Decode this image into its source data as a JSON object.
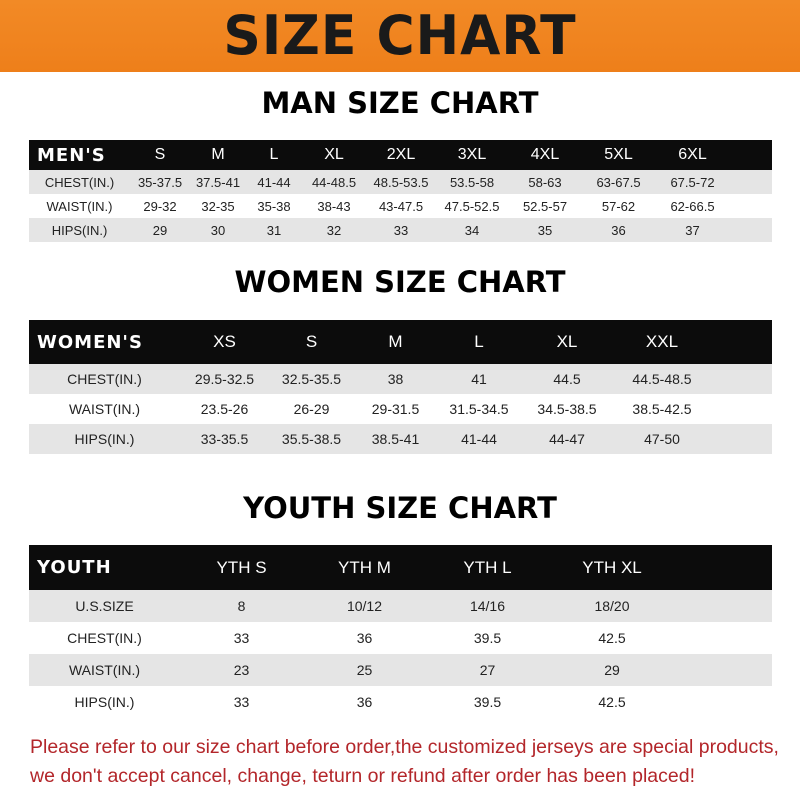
{
  "banner": {
    "title": "SIZE CHART",
    "color": "#ef841f"
  },
  "men": {
    "title": "MAN SIZE CHART",
    "header": [
      "MEN'S",
      "S",
      "M",
      "L",
      "XL",
      "2XL",
      "3XL",
      "4XL",
      "5XL",
      "6XL"
    ],
    "rows": [
      [
        "CHEST(IN.)",
        "35-37.5",
        "37.5-41",
        "41-44",
        "44-48.5",
        "48.5-53.5",
        "53.5-58",
        "58-63",
        "63-67.5",
        "67.5-72"
      ],
      [
        "WAIST(IN.)",
        "29-32",
        "32-35",
        "35-38",
        "38-43",
        "43-47.5",
        "47.5-52.5",
        "52.5-57",
        "57-62",
        "62-66.5"
      ],
      [
        "HIPS(IN.)",
        "29",
        "30",
        "31",
        "32",
        "33",
        "34",
        "35",
        "36",
        "37"
      ]
    ]
  },
  "women": {
    "title": "WOMEN SIZE CHART",
    "header": [
      "WOMEN'S",
      "XS",
      "S",
      "M",
      "L",
      "XL",
      "XXL"
    ],
    "rows": [
      [
        "CHEST(IN.)",
        "29.5-32.5",
        "32.5-35.5",
        "38",
        "41",
        "44.5",
        "44.5-48.5"
      ],
      [
        "WAIST(IN.)",
        "23.5-26",
        "26-29",
        "29-31.5",
        "31.5-34.5",
        "34.5-38.5",
        "38.5-42.5"
      ],
      [
        "HIPS(IN.)",
        "33-35.5",
        "35.5-38.5",
        "38.5-41",
        "41-44",
        "44-47",
        "47-50"
      ]
    ]
  },
  "youth": {
    "title": "YOUTH SIZE CHART",
    "header": [
      "YOUTH",
      "YTH S",
      "YTH M",
      "YTH L",
      "YTH XL"
    ],
    "rows": [
      [
        "U.S.SIZE",
        "8",
        "10/12",
        "14/16",
        "18/20"
      ],
      [
        "CHEST(IN.)",
        "33",
        "36",
        "39.5",
        "42.5"
      ],
      [
        "WAIST(IN.)",
        "23",
        "25",
        "27",
        "29"
      ],
      [
        "HIPS(IN.)",
        "33",
        "36",
        "39.5",
        "42.5"
      ]
    ]
  },
  "note": {
    "line1": "Please refer to our size chart before order,the customized jerseys are special products,",
    "line2": "we don't accept cancel, change, teturn or refund after order has been placed!",
    "color": "#b3262a"
  }
}
